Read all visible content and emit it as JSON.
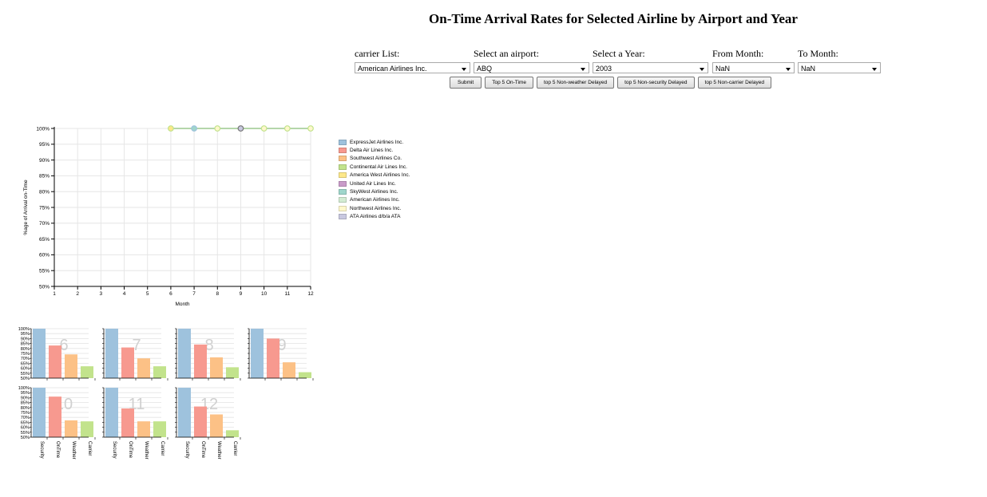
{
  "title": "On-Time Arrival Rates for Selected Airline by Airport and Year",
  "controls": {
    "carrier": {
      "label": "carrier List:",
      "value": "American Airlines Inc."
    },
    "airport": {
      "label": "Select an airport:",
      "value": "ABQ"
    },
    "year": {
      "label": "Select a Year:",
      "value": "2003"
    },
    "from_month": {
      "label": "From Month:",
      "value": "NaN"
    },
    "to_month": {
      "label": "To Month:",
      "value": "NaN"
    }
  },
  "buttons": {
    "submit": "Submit",
    "top5_ontime": "Top 5 On-Time",
    "top5_weather": "top 5 Non-weather Delayed",
    "top5_security": "top 5 Non-security Delayed",
    "top5_carrier": "top 5 Non-carrier Delayed"
  },
  "legend": [
    {
      "name": "ExpressJet Airlines Inc.",
      "color": "#9ec2dd"
    },
    {
      "name": "Delta Air Lines Inc.",
      "color": "#f7998f"
    },
    {
      "name": "Southwest Airlines Co.",
      "color": "#fcc186"
    },
    {
      "name": "Continental Air Lines Inc.",
      "color": "#c2e38c"
    },
    {
      "name": "America West Airlines Inc.",
      "color": "#fde88a"
    },
    {
      "name": "United Air Lines Inc.",
      "color": "#c99bc9"
    },
    {
      "name": "SkyWest Airlines Inc.",
      "color": "#9fd6cb"
    },
    {
      "name": "American Airlines Inc.",
      "color": "#d3ecd3"
    },
    {
      "name": "Northwest Airlines Inc.",
      "color": "#fff8cc"
    },
    {
      "name": "ATA Airlines d/b/a ATA",
      "color": "#c8c8e0"
    }
  ],
  "chart_data": [
    {
      "type": "line",
      "title": "",
      "xlabel": "Month",
      "ylabel": "%age of Arrival on-Time",
      "x_ticks": [
        "1",
        "2",
        "3",
        "4",
        "5",
        "6",
        "7",
        "8",
        "9",
        "10",
        "11",
        "12"
      ],
      "y_ticks": [
        "50%",
        "55%",
        "60%",
        "65%",
        "70%",
        "75%",
        "80%",
        "85%",
        "90%",
        "95%",
        "100%"
      ],
      "xlim": [
        1,
        12
      ],
      "ylim": [
        50,
        100
      ],
      "grid": true,
      "series": [
        {
          "color": "#9ec2dd",
          "x": [
            6,
            7,
            8,
            9,
            10,
            11,
            12
          ],
          "values": [
            100,
            100,
            100,
            100,
            100,
            100,
            100
          ],
          "marker_fill": [
            "#fde88a",
            "#9fd6cb",
            "#fff8cc",
            "#c8c8e0",
            "#fff8cc",
            "#fff8cc",
            "#fff8cc"
          ],
          "marker_stroke": [
            "#c2e38c",
            "#9ec2dd",
            "#c2e38c",
            "#777777",
            "#c2e38c",
            "#c2e38c",
            "#c2e38c"
          ]
        }
      ]
    },
    {
      "type": "bar",
      "layout": "small-multiples",
      "categories": [
        "Security",
        "OnTime",
        "Weather",
        "Carrier"
      ],
      "category_colors": [
        "#9ec2dd",
        "#f7998f",
        "#fcc186",
        "#c2e38c"
      ],
      "y_ticks": [
        "50%",
        "55%",
        "60%",
        "65%",
        "70%",
        "75%",
        "80%",
        "85%",
        "90%",
        "95%",
        "100%"
      ],
      "ylim": [
        50,
        100
      ],
      "panels": [
        {
          "label": "6",
          "values": [
            100,
            83,
            74,
            62
          ]
        },
        {
          "label": "7",
          "values": [
            100,
            81,
            70,
            62
          ]
        },
        {
          "label": "8",
          "values": [
            100,
            84,
            71,
            61
          ]
        },
        {
          "label": "9",
          "values": [
            100,
            90,
            66,
            56
          ]
        },
        {
          "label": "10",
          "values": [
            100,
            91,
            67,
            66
          ]
        },
        {
          "label": "11",
          "values": [
            100,
            79,
            66,
            66
          ]
        },
        {
          "label": "12",
          "values": [
            100,
            81,
            73,
            57
          ]
        }
      ]
    }
  ]
}
